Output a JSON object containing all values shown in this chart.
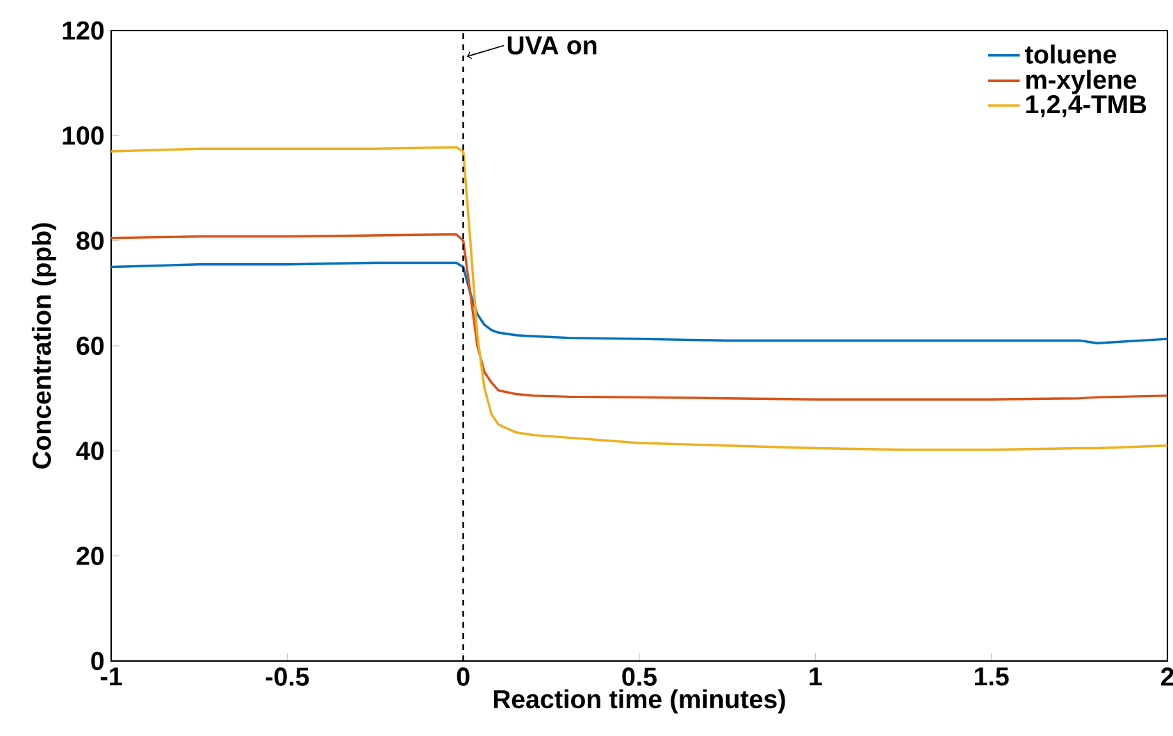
{
  "chart_data": {
    "type": "line",
    "xlabel": "Reaction time (minutes)",
    "ylabel": "Concentration (ppb)",
    "xlim": [
      -1,
      2
    ],
    "ylim": [
      0,
      120
    ],
    "xticks": [
      -1,
      -0.5,
      0,
      0.5,
      1,
      1.5,
      2
    ],
    "yticks": [
      0,
      20,
      40,
      60,
      80,
      100,
      120
    ],
    "grid": false,
    "legend": "top right",
    "marker": "none",
    "line_style": "solid",
    "x": [
      -1,
      -0.75,
      -0.5,
      -0.25,
      -0.02,
      0,
      0.02,
      0.04,
      0.06,
      0.08,
      0.1,
      0.15,
      0.2,
      0.3,
      0.5,
      0.75,
      1,
      1.25,
      1.5,
      1.75,
      1.8,
      2
    ],
    "series": [
      {
        "name": "toluene",
        "color": "#0072bd",
        "values": [
          75,
          75.5,
          75.5,
          75.8,
          75.8,
          75,
          70,
          66,
          64,
          63,
          62.5,
          62,
          61.8,
          61.5,
          61.3,
          61,
          61,
          61,
          61,
          61,
          60.5,
          61.3
        ]
      },
      {
        "name": "m-xylene",
        "color": "#d95319",
        "values": [
          80.5,
          80.8,
          80.8,
          81,
          81.2,
          80,
          70,
          60,
          55,
          53,
          51.5,
          50.8,
          50.5,
          50.3,
          50.2,
          50,
          49.8,
          49.8,
          49.8,
          50,
          50.2,
          50.5
        ]
      },
      {
        "name": "1,2,4-TMB",
        "color": "#edb120",
        "values": [
          97,
          97.5,
          97.5,
          97.5,
          97.8,
          97,
          80,
          62,
          52,
          47,
          45,
          43.5,
          43,
          42.5,
          41.5,
          41,
          40.5,
          40.2,
          40.2,
          40.5,
          40.5,
          41
        ]
      }
    ],
    "ref_lines": [
      {
        "axis": "x",
        "value": 0,
        "label": "UVA on",
        "color": "#000000",
        "line_style": "dashed"
      }
    ]
  }
}
